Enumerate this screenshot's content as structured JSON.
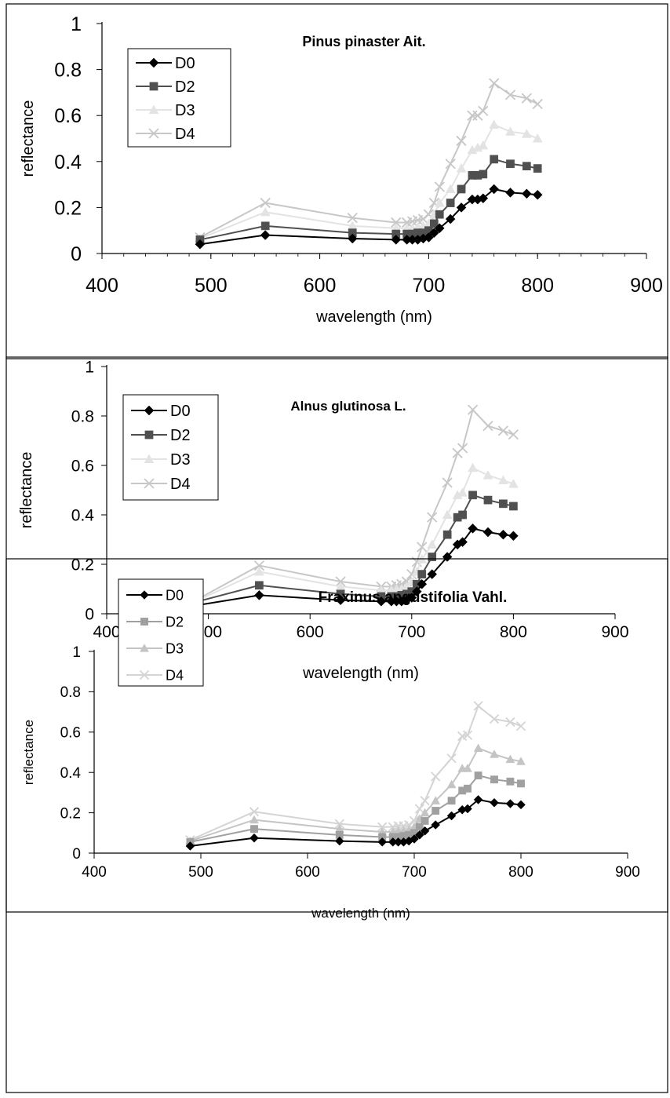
{
  "chart_data": [
    {
      "type": "line",
      "title": "Pinus pinaster Ait.",
      "xlabel": "wavelength (nm)",
      "ylabel": "reflectance",
      "xlim": [
        400,
        900
      ],
      "ylim": [
        0,
        1
      ],
      "x_ticks": [
        "400",
        "500",
        "600",
        "700",
        "800",
        "900"
      ],
      "y_ticks": [
        "0",
        "0.2",
        "0.4",
        "0.6",
        "0.8",
        "1"
      ],
      "legend_position": "top-left",
      "x": [
        490,
        550,
        630,
        670,
        680,
        685,
        690,
        695,
        700,
        705,
        710,
        720,
        730,
        740,
        745,
        750,
        760,
        775,
        790,
        800
      ],
      "series": [
        {
          "name": "D0",
          "marker": "diamond",
          "color": "#000000",
          "values": [
            0.04,
            0.08,
            0.065,
            0.06,
            0.06,
            0.06,
            0.06,
            0.065,
            0.07,
            0.09,
            0.11,
            0.15,
            0.2,
            0.235,
            0.235,
            0.24,
            0.28,
            0.265,
            0.26,
            0.255
          ]
        },
        {
          "name": "D2",
          "marker": "square",
          "color": "#505050",
          "values": [
            0.06,
            0.12,
            0.09,
            0.085,
            0.085,
            0.085,
            0.09,
            0.09,
            0.1,
            0.13,
            0.17,
            0.22,
            0.28,
            0.34,
            0.34,
            0.345,
            0.41,
            0.39,
            0.38,
            0.37
          ]
        },
        {
          "name": "D3",
          "marker": "triangle",
          "color": "#e3e3e3",
          "values": [
            0.065,
            0.18,
            0.12,
            0.11,
            0.11,
            0.11,
            0.115,
            0.12,
            0.13,
            0.17,
            0.22,
            0.28,
            0.37,
            0.45,
            0.46,
            0.47,
            0.56,
            0.53,
            0.52,
            0.5
          ]
        },
        {
          "name": "D4",
          "marker": "x",
          "color": "#c7c7c7",
          "values": [
            0.07,
            0.22,
            0.155,
            0.135,
            0.135,
            0.14,
            0.145,
            0.15,
            0.17,
            0.22,
            0.29,
            0.39,
            0.49,
            0.6,
            0.6,
            0.62,
            0.74,
            0.69,
            0.675,
            0.65
          ]
        }
      ]
    },
    {
      "type": "line",
      "title": "Alnus glutinosa L.",
      "xlabel": "wavelength (nm)",
      "ylabel": "reflectance",
      "xlim": [
        400,
        900
      ],
      "ylim": [
        0,
        1
      ],
      "x_ticks": [
        "400",
        "500",
        "600",
        "700",
        "800",
        "900"
      ],
      "y_ticks": [
        "0",
        "0.2",
        "0.4",
        "0.6",
        "0.8",
        "1"
      ],
      "legend_position": "top-left",
      "x": [
        490,
        550,
        630,
        670,
        680,
        685,
        690,
        695,
        700,
        705,
        710,
        720,
        735,
        745,
        750,
        760,
        775,
        790,
        800
      ],
      "series": [
        {
          "name": "D0",
          "marker": "diamond",
          "color": "#000000",
          "values": [
            0.035,
            0.075,
            0.055,
            0.05,
            0.05,
            0.05,
            0.05,
            0.055,
            0.065,
            0.09,
            0.12,
            0.16,
            0.23,
            0.28,
            0.29,
            0.345,
            0.33,
            0.32,
            0.315
          ]
        },
        {
          "name": "D2",
          "marker": "square",
          "color": "#505050",
          "values": [
            0.05,
            0.115,
            0.08,
            0.07,
            0.07,
            0.07,
            0.075,
            0.08,
            0.09,
            0.12,
            0.16,
            0.23,
            0.32,
            0.39,
            0.4,
            0.48,
            0.46,
            0.445,
            0.435
          ]
        },
        {
          "name": "D3",
          "marker": "triangle",
          "color": "#e3e3e3",
          "values": [
            0.055,
            0.17,
            0.11,
            0.095,
            0.095,
            0.1,
            0.1,
            0.11,
            0.13,
            0.17,
            0.22,
            0.28,
            0.4,
            0.48,
            0.49,
            0.59,
            0.56,
            0.54,
            0.525
          ]
        },
        {
          "name": "D4",
          "marker": "x",
          "color": "#c7c7c7",
          "values": [
            0.06,
            0.195,
            0.13,
            0.11,
            0.11,
            0.115,
            0.12,
            0.13,
            0.16,
            0.21,
            0.27,
            0.39,
            0.53,
            0.65,
            0.67,
            0.825,
            0.76,
            0.74,
            0.725
          ]
        }
      ]
    },
    {
      "type": "line",
      "title": "Fraxinus angustifolia Vahl.",
      "xlabel": "wavelength (nm)",
      "ylabel": "reflectance",
      "xlim": [
        400,
        900
      ],
      "ylim": [
        0,
        1
      ],
      "x_ticks": [
        "400",
        "500",
        "600",
        "700",
        "800",
        "900"
      ],
      "y_ticks": [
        "0",
        "0.2",
        "0.4",
        "0.6",
        "0.8",
        "1"
      ],
      "legend_position": "top-left",
      "x": [
        490,
        550,
        630,
        670,
        680,
        685,
        690,
        695,
        700,
        705,
        710,
        720,
        735,
        745,
        750,
        760,
        775,
        790,
        800
      ],
      "series": [
        {
          "name": "D0",
          "marker": "diamond",
          "color": "#000000",
          "values": [
            0.035,
            0.075,
            0.06,
            0.055,
            0.055,
            0.055,
            0.055,
            0.06,
            0.07,
            0.09,
            0.11,
            0.14,
            0.185,
            0.215,
            0.22,
            0.265,
            0.25,
            0.245,
            0.24
          ]
        },
        {
          "name": "D2",
          "marker": "square",
          "color": "#a0a0a0",
          "values": [
            0.055,
            0.12,
            0.09,
            0.08,
            0.08,
            0.08,
            0.085,
            0.09,
            0.1,
            0.13,
            0.16,
            0.21,
            0.26,
            0.31,
            0.32,
            0.385,
            0.365,
            0.355,
            0.345
          ]
        },
        {
          "name": "D3",
          "marker": "triangle",
          "color": "#c4c4c4",
          "values": [
            0.06,
            0.165,
            0.12,
            0.105,
            0.105,
            0.11,
            0.11,
            0.115,
            0.13,
            0.17,
            0.2,
            0.26,
            0.34,
            0.42,
            0.42,
            0.52,
            0.49,
            0.465,
            0.455
          ]
        },
        {
          "name": "D4",
          "marker": "x",
          "color": "#d4d4d4",
          "values": [
            0.065,
            0.205,
            0.145,
            0.13,
            0.13,
            0.135,
            0.135,
            0.14,
            0.16,
            0.22,
            0.26,
            0.38,
            0.47,
            0.58,
            0.585,
            0.73,
            0.665,
            0.65,
            0.63
          ]
        }
      ]
    }
  ]
}
